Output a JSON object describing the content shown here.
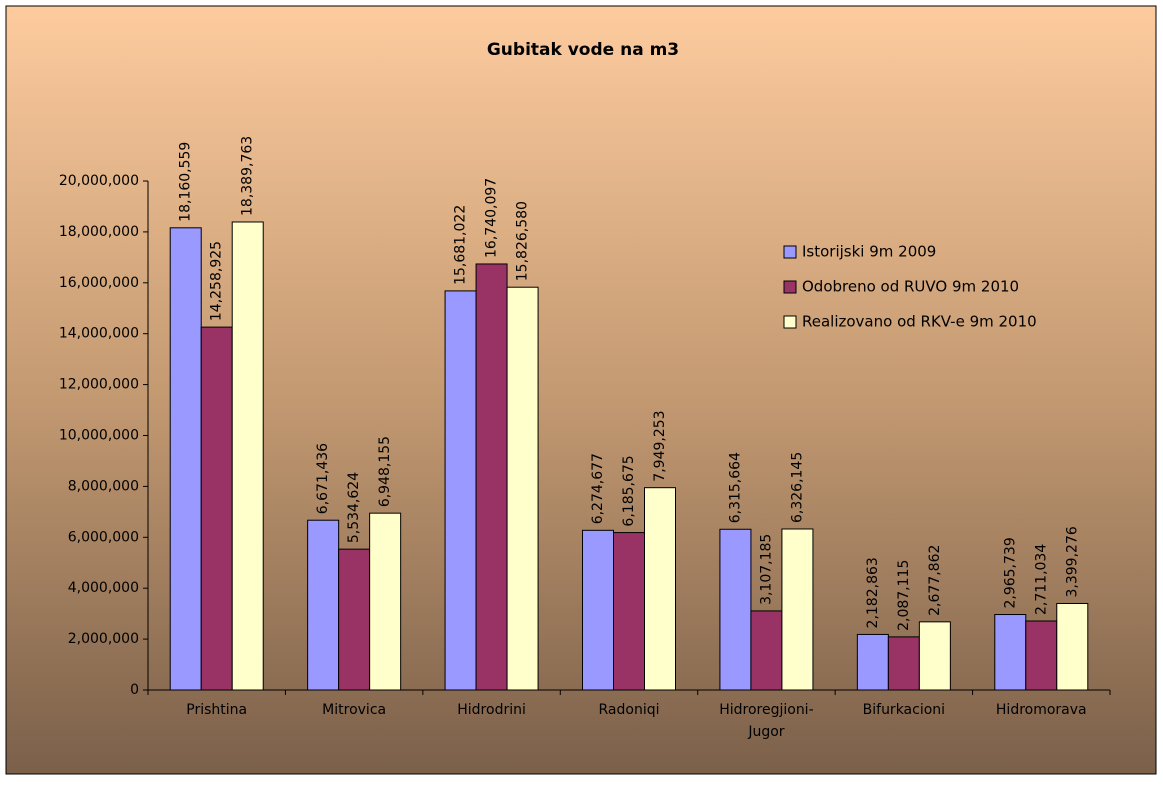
{
  "chart_data": {
    "type": "bar",
    "title": "Gubitak vode na m3",
    "categories": [
      "Prishtina",
      "Mitrovica",
      "Hidrodrini",
      "Radoniqi",
      "Hidroregjioni-Jugor",
      "Bifurkacioni",
      "Hidromorava"
    ],
    "series": [
      {
        "name": "Istorijski 9m 2009",
        "color": "#9999ff",
        "values": [
          18160559,
          6671436,
          15681022,
          6274677,
          6315664,
          2182863,
          2965739
        ],
        "value_labels": [
          "18,160,559",
          "6,671,436",
          "15,681,022",
          "6,274,677",
          "6,315,664",
          "2,182,863",
          "2,965,739"
        ]
      },
      {
        "name": "Odobreno od RUVO 9m 2010",
        "color": "#993366",
        "values": [
          14258925,
          5534624,
          16740097,
          6185675,
          3107185,
          2087115,
          2711034
        ],
        "value_labels": [
          "14,258,925",
          "5,534,624",
          "16,740,097",
          "6,185,675",
          "3,107,185",
          "2,087,115",
          "2,711,034"
        ]
      },
      {
        "name": "Realizovano od RKV-e 9m  2010",
        "color": "#ffffcc",
        "values": [
          18389763,
          6948155,
          15826580,
          7949253,
          6326145,
          2677862,
          3399276
        ],
        "value_labels": [
          "18,389,763",
          "6,948,155",
          "15,826,580",
          "7,949,253",
          "6,326,145",
          "2,677,862",
          "3,399,276"
        ]
      }
    ],
    "ylim": [
      0,
      20000000
    ],
    "yticks": [
      0,
      {
        "value": 2000000,
        "label": "2,000,000"
      },
      {
        "value": 4000000,
        "label": "4,000,000"
      },
      {
        "value": 6000000,
        "label": "6,000,000"
      },
      {
        "value": 8000000,
        "label": "8,000,000"
      },
      {
        "value": 10000000,
        "label": "10,000,000"
      },
      {
        "value": 12000000,
        "label": "12,000,000"
      },
      {
        "value": 14000000,
        "label": "14,000,000"
      },
      {
        "value": 16000000,
        "label": "16,000,000"
      },
      {
        "value": 18000000,
        "label": "18,000,000"
      },
      {
        "value": 20000000,
        "label": "20,000,000"
      }
    ],
    "grid": false,
    "legend": "right"
  }
}
